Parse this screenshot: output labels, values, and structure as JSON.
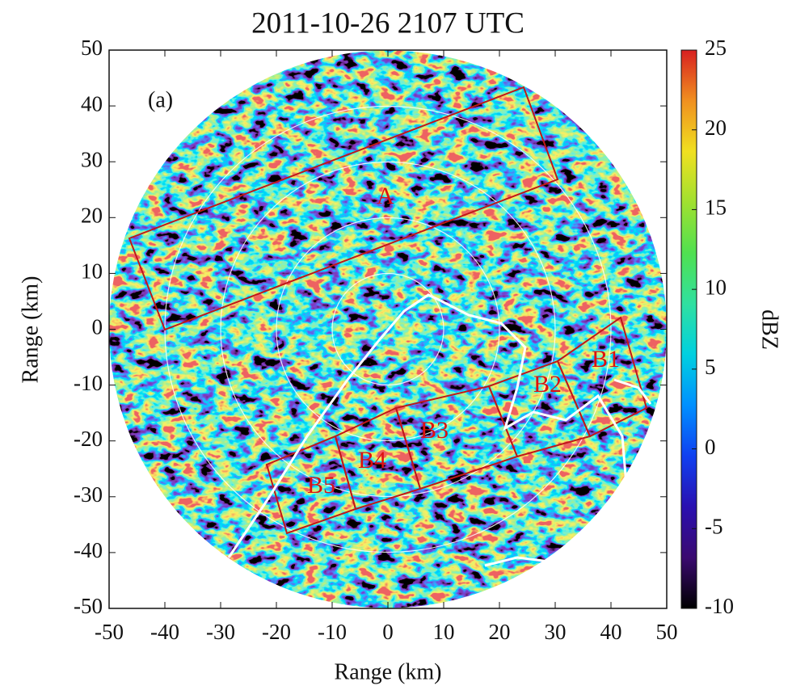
{
  "chart_data": {
    "type": "radar-ppi",
    "title": "2011-10-26 2107 UTC",
    "x_label": "Range (km)",
    "y_label": "Range (km)",
    "xlim": [
      -50,
      50
    ],
    "ylim": [
      -50,
      50
    ],
    "xticks": [
      -50,
      -40,
      -30,
      -20,
      -10,
      0,
      10,
      20,
      30,
      40,
      50
    ],
    "yticks": [
      -50,
      -40,
      -30,
      -20,
      -10,
      0,
      10,
      20,
      30,
      40,
      50
    ],
    "range_rings": [
      10,
      20,
      30,
      40
    ],
    "colorbar": {
      "label": "dBZ",
      "clim": [
        -10,
        25
      ],
      "ticks": [
        -10,
        -5,
        0,
        5,
        10,
        15,
        20,
        25
      ],
      "colormap": [
        "#000000",
        "#3a0a70",
        "#2a10b0",
        "#1040f0",
        "#0090ff",
        "#00d0e0",
        "#30e0a0",
        "#50e050",
        "#a0e030",
        "#f0e020",
        "#f09020",
        "#d82020"
      ]
    },
    "panel_label": "(a)",
    "region_labels": [
      "A",
      "B1",
      "B2",
      "B3",
      "B4",
      "B5"
    ]
  }
}
